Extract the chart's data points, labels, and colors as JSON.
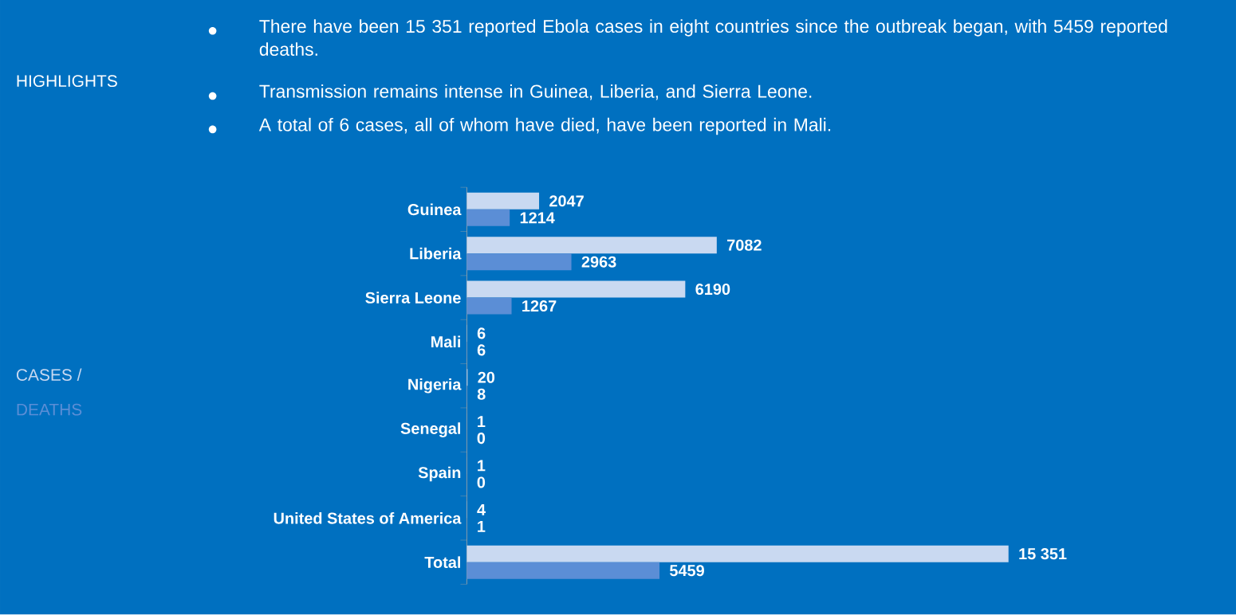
{
  "chart_data": {
    "type": "bar",
    "orientation": "horizontal",
    "title": "HIGHLIGHTS",
    "annotations": [
      "There have been 15 351 reported Ebola cases in eight countries since the outbreak began, with 5459 reported deaths.",
      "Transmission remains intense in Guinea, Liberia, and  Sierra Leone.",
      "A total of 6 cases, all of whom have died, have been reported in Mali."
    ],
    "categories": [
      "Guinea",
      "Liberia",
      "Sierra Leone",
      "Mali",
      "Nigeria",
      "Senegal",
      "Spain",
      "United States of America",
      "Total"
    ],
    "series": [
      {
        "name": "CASES /",
        "color": "#c9d9f1",
        "values": [
          2047,
          7082,
          6190,
          6,
          20,
          1,
          1,
          4,
          15351
        ],
        "value_labels": [
          "2047",
          "7082",
          "6190",
          "6",
          "20",
          "1",
          "1",
          "4",
          "15 351"
        ]
      },
      {
        "name": "DEATHS",
        "color": "#5b8ed6",
        "values": [
          1214,
          2963,
          1267,
          6,
          8,
          0,
          0,
          1,
          5459
        ],
        "value_labels": [
          "1214",
          "2963",
          "1267",
          "6",
          "8",
          "0",
          "0",
          "1",
          "5459"
        ]
      }
    ],
    "legend": "left"
  }
}
